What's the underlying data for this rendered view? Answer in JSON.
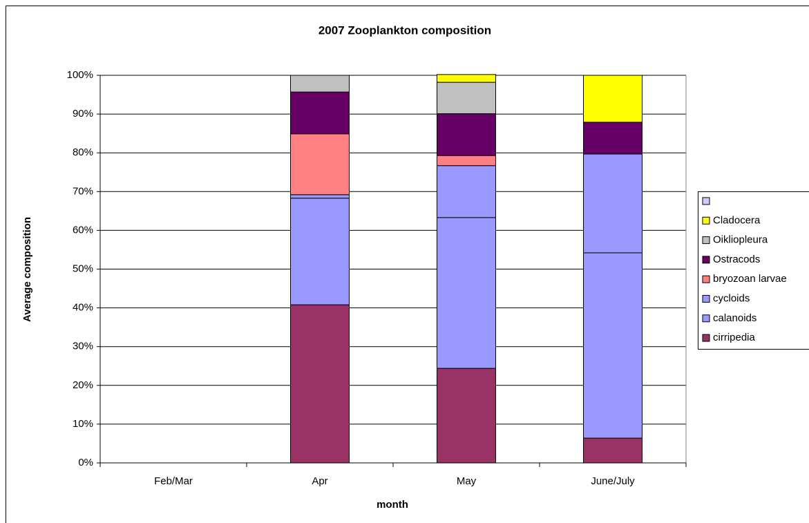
{
  "chart_data": {
    "type": "stacked_bar",
    "title": "2007 Zooplankton composition",
    "x_label": "month",
    "y_label": "Average composition",
    "categories": [
      "Feb/Mar",
      "Apr",
      "May",
      "June/July"
    ],
    "series": [
      {
        "name": "cirripedia",
        "color": "#993366",
        "values": [
          0,
          40.8,
          24.4,
          6.4
        ]
      },
      {
        "name": "calanoids",
        "color": "#9999ff",
        "values": [
          0,
          27.5,
          38.9,
          47.8
        ]
      },
      {
        "name": "cycloids",
        "color": "#9999ff",
        "values": [
          0,
          0.9,
          13.4,
          25.5
        ]
      },
      {
        "name": "bryozoan larvae",
        "color": "#ff8080",
        "values": [
          0,
          15.7,
          2.6,
          0
        ]
      },
      {
        "name": "Ostracods",
        "color": "#660066",
        "values": [
          0,
          10.8,
          10.8,
          8.2
        ]
      },
      {
        "name": "Oikliopleura",
        "color": "#c0c0c0",
        "values": [
          0,
          4.3,
          8.1,
          0
        ]
      },
      {
        "name": "Cladocera",
        "color": "#ffff00",
        "values": [
          0,
          0,
          2.0,
          12.1
        ]
      },
      {
        "name": null,
        "color": "#ccccff",
        "values": [
          0,
          0,
          0,
          0
        ]
      }
    ],
    "ylim": [
      0,
      100
    ],
    "yticks": [
      {
        "value": 0,
        "label": "0%"
      },
      {
        "value": 10,
        "label": "10%"
      },
      {
        "value": 20,
        "label": "20%"
      },
      {
        "value": 30,
        "label": "30%"
      },
      {
        "value": 40,
        "label": "40%"
      },
      {
        "value": 50,
        "label": "50%"
      },
      {
        "value": 60,
        "label": "60%"
      },
      {
        "value": 70,
        "label": "70%"
      },
      {
        "value": 80,
        "label": "80%"
      },
      {
        "value": 90,
        "label": "90%"
      },
      {
        "value": 100,
        "label": "100%"
      }
    ],
    "grid": true,
    "legend": "right"
  }
}
